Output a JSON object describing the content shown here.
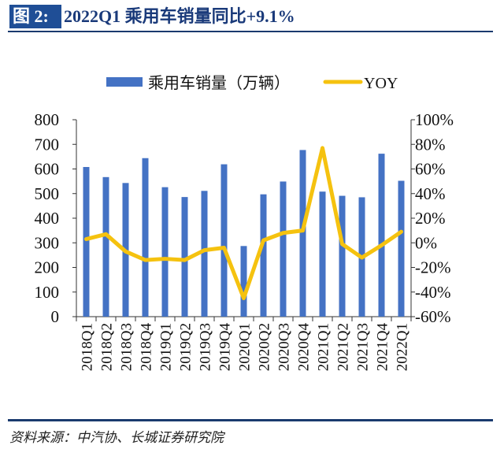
{
  "header": {
    "figure_label": "图 2:",
    "title": "2022Q1 乘用车销量同比+9.1%"
  },
  "source": "资料来源：中汽协、长城证券研究院",
  "chart_data": {
    "type": "bar+line",
    "categories": [
      "2018Q1",
      "2018Q2",
      "2018Q3",
      "2018Q4",
      "2019Q1",
      "2019Q2",
      "2019Q3",
      "2019Q4",
      "2020Q1",
      "2020Q2",
      "2020Q3",
      "2020Q4",
      "2021Q1",
      "2021Q2",
      "2021Q3",
      "2021Q4",
      "2022Q1"
    ],
    "series": [
      {
        "name": "乘用车销量（万辆）",
        "type": "bar",
        "axis": "left",
        "color": "#4472c4",
        "values": [
          608,
          567,
          543,
          644,
          526,
          486,
          511,
          619,
          287,
          497,
          549,
          677,
          508,
          491,
          485,
          662,
          552
        ]
      },
      {
        "name": "YOY",
        "type": "line",
        "axis": "right",
        "color": "#f5c20f",
        "values": [
          3,
          7,
          -7,
          -14,
          -13,
          -14,
          -6,
          -4,
          -45,
          2,
          8,
          10,
          77,
          -1,
          -12,
          -2,
          9
        ]
      }
    ],
    "left_axis": {
      "range": [
        0,
        800
      ],
      "ticks": [
        "0",
        "100",
        "200",
        "300",
        "400",
        "500",
        "600",
        "700",
        "800"
      ]
    },
    "right_axis": {
      "range": [
        -60,
        100
      ],
      "ticks": [
        "-60%",
        "-40%",
        "-20%",
        "0%",
        "20%",
        "40%",
        "60%",
        "80%",
        "100%"
      ]
    },
    "legend_position": "top",
    "grid": false
  }
}
